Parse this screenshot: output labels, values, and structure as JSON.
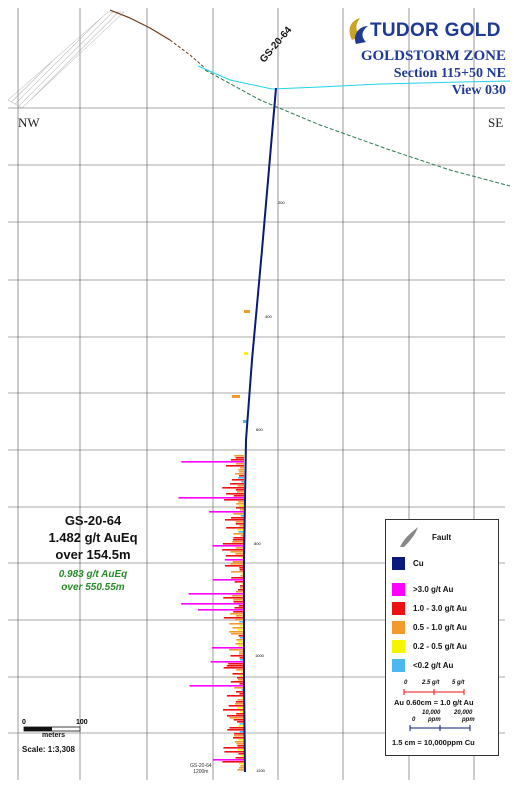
{
  "header": {
    "company": "TUDOR GOLD",
    "zone": "GOLDSTORM ZONE",
    "section": "Section 115+50 NE",
    "view": "View 030"
  },
  "directions": {
    "left": "NW",
    "right": "SE"
  },
  "drillhole": {
    "name": "GS-20-64",
    "end_label_1": "GS-20-64",
    "end_label_2": "1200m",
    "depth_marks": [
      "200",
      "400",
      "600",
      "800",
      "1000",
      "1200"
    ]
  },
  "intercept": {
    "hole": "GS-20-64",
    "grade": "1.482 g/t AuEq",
    "length": "over 154.5m",
    "grade_alt": "0.983 g/t AuEq",
    "length_alt": "over 550.55m"
  },
  "legend": {
    "fault": "Fault",
    "items": [
      {
        "label": "Cu",
        "color": "#0a1a7a"
      },
      {
        "label": ">3.0 g/t Au",
        "color": "#ff00ff"
      },
      {
        "label": "1.0 - 3.0 g/t Au",
        "color": "#ee1111"
      },
      {
        "label": "0.5 - 1.0 g/t Au",
        "color": "#f39a2c"
      },
      {
        "label": "0.2 - 0.5 g/t Au",
        "color": "#f5f500"
      },
      {
        "label": "<0.2 g/t Au",
        "color": "#4db8f0"
      }
    ],
    "au_scale": {
      "t0": "0",
      "t1": "2.5 g/t",
      "t2": "5 g/t",
      "caption": "Au 0.60cm = 1.0 g/t Au"
    },
    "cu_scale": {
      "t1": "10,000",
      "t2": "20,000",
      "t0": "0",
      "unit1": "ppm",
      "unit2": "ppm",
      "caption": "1.5 cm = 10,000ppm Cu"
    }
  },
  "scale_bar": {
    "start": "0",
    "end": "100",
    "unit": "meters",
    "ratio": "Scale: 1:3,308"
  }
}
